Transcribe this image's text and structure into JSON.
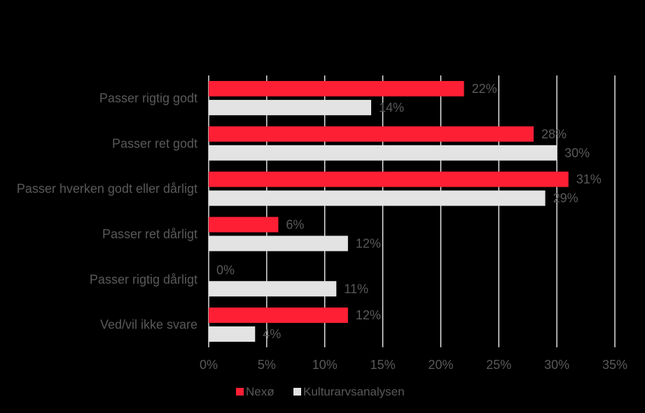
{
  "chart_data": {
    "type": "bar",
    "orientation": "horizontal",
    "title": "",
    "xlabel": "",
    "ylabel": "",
    "categories": [
      "Passer rigtig godt",
      "Passer ret godt",
      "Passer hverken godt eller dårligt",
      "Passer ret dårligt",
      "Passer rigtig dårligt",
      "Ved/vil ikke svare"
    ],
    "series": [
      {
        "name": "Nexø",
        "color": "#ff1f35",
        "values": [
          22,
          28,
          31,
          6,
          0,
          12
        ],
        "labels": [
          "22%",
          "28%",
          "31%",
          "6%",
          "0%",
          "12%"
        ]
      },
      {
        "name": "Kulturarvsanalysen",
        "color": "#e3e3e3",
        "values": [
          14,
          30,
          29,
          12,
          11,
          4
        ],
        "labels": [
          "14%",
          "30%",
          "29%",
          "12%",
          "11%",
          "4%"
        ]
      }
    ],
    "xlim": [
      0,
      35
    ],
    "x_ticks": [
      0,
      5,
      10,
      15,
      20,
      25,
      30,
      35
    ],
    "x_tick_labels": [
      "0%",
      "5%",
      "10%",
      "15%",
      "20%",
      "25%",
      "30%",
      "35%"
    ],
    "grid": true,
    "legend": "bottom",
    "background": "#000000",
    "text_color": "#595959",
    "grid_color": "#ffffff"
  }
}
